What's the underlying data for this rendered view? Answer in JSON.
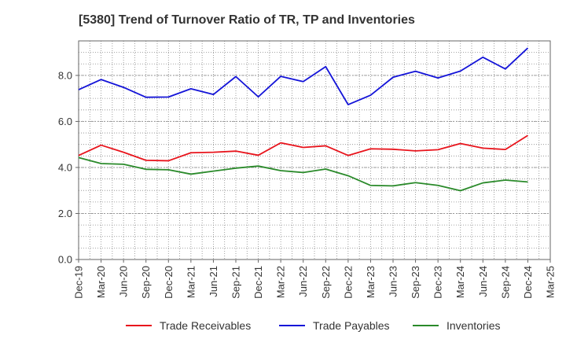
{
  "chart_data": {
    "type": "line",
    "title": "[5380]  Trend of Turnover Ratio of TR, TP and Inventories",
    "xlabel": "",
    "ylabel": "",
    "ylim": [
      0,
      9.5
    ],
    "y_ticks": [
      0.0,
      2.0,
      4.0,
      6.0,
      8.0
    ],
    "y_tick_labels": [
      "0.0",
      "2.0",
      "4.0",
      "6.0",
      "8.0"
    ],
    "x_tick_labels": [
      "Dec-19",
      "Mar-20",
      "Jun-20",
      "Sep-20",
      "Dec-20",
      "Mar-21",
      "Jun-21",
      "Sep-21",
      "Dec-21",
      "Mar-22",
      "Jun-22",
      "Sep-22",
      "Dec-22",
      "Mar-23",
      "Jun-23",
      "Sep-23",
      "Dec-23",
      "Mar-24",
      "Jun-24",
      "Sep-24",
      "Dec-24",
      "Mar-25"
    ],
    "categories": [
      "Dec-19",
      "Mar-20",
      "Jun-20",
      "Sep-20",
      "Dec-20",
      "Mar-21",
      "Jun-21",
      "Sep-21",
      "Dec-21",
      "Mar-22",
      "Jun-22",
      "Sep-22",
      "Dec-22",
      "Mar-23",
      "Jun-23",
      "Sep-23",
      "Dec-23",
      "Mar-24",
      "Jun-24",
      "Sep-24",
      "Dec-24"
    ],
    "grid": true,
    "legend_position": "bottom",
    "series": [
      {
        "name": "Trade Receivables",
        "color": "#e8141c",
        "values": [
          4.52,
          4.97,
          4.66,
          4.31,
          4.29,
          4.64,
          4.66,
          4.71,
          4.53,
          5.07,
          4.87,
          4.94,
          4.52,
          4.81,
          4.79,
          4.72,
          4.77,
          5.04,
          4.84,
          4.78,
          5.39
        ]
      },
      {
        "name": "Trade Payables",
        "color": "#1414d8",
        "values": [
          7.38,
          7.82,
          7.48,
          7.05,
          7.06,
          7.42,
          7.17,
          7.95,
          7.07,
          7.96,
          7.73,
          8.38,
          6.73,
          7.14,
          7.92,
          8.18,
          7.89,
          8.19,
          8.79,
          8.28,
          9.19
        ]
      },
      {
        "name": "Inventories",
        "color": "#2a8a2a",
        "values": [
          4.43,
          4.17,
          4.14,
          3.92,
          3.9,
          3.71,
          3.84,
          3.97,
          4.06,
          3.86,
          3.78,
          3.93,
          3.64,
          3.22,
          3.2,
          3.34,
          3.22,
          2.99,
          3.33,
          3.45,
          3.37
        ]
      }
    ]
  }
}
